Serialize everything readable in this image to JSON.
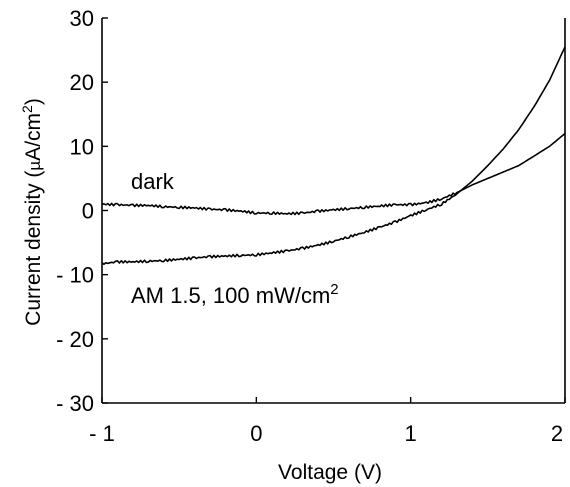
{
  "chart_data": {
    "type": "line",
    "xlabel": "Voltage (V)",
    "ylabel": {
      "prefix": "Current density (",
      "mu": "µ",
      "unit": "A/cm",
      "sup": "2",
      "suffix": ")"
    },
    "xlim": [
      -1,
      2
    ],
    "ylim": [
      -30,
      30
    ],
    "xticks": [
      -1,
      0,
      1,
      2
    ],
    "xtick_labels": [
      "- 1",
      "0",
      "1",
      "2"
    ],
    "yticks": [
      30,
      20,
      10,
      0,
      -10,
      -20,
      -30
    ],
    "ytick_labels": [
      "30",
      "20",
      "10",
      "0",
      "- 10",
      "- 20",
      "- 30"
    ],
    "grid": false,
    "annotations": {
      "dark": "dark",
      "illum_main": "AM 1.5, 100 mW/cm",
      "illum_sup": "2"
    },
    "series": [
      {
        "x": [
          -1.0,
          -0.9,
          -0.8,
          -0.7,
          -0.6,
          -0.5,
          -0.4,
          -0.3,
          -0.2,
          -0.1,
          0.0,
          0.1,
          0.2,
          0.3,
          0.4,
          0.5,
          0.6,
          0.7,
          0.8,
          0.9,
          1.0,
          1.1,
          1.2,
          1.3,
          1.4,
          1.5,
          1.6,
          1.7,
          1.8,
          1.9,
          2.0
        ],
        "y": [
          1.0,
          0.9,
          0.8,
          0.8,
          0.6,
          0.5,
          0.4,
          0.2,
          0.1,
          -0.1,
          -0.4,
          -0.4,
          -0.5,
          -0.4,
          -0.1,
          0.1,
          0.3,
          0.5,
          0.7,
          0.9,
          0.9,
          1.2,
          1.8,
          2.8,
          4.0,
          5.0,
          6.0,
          7.0,
          8.5,
          10.0,
          12.0
        ]
      },
      {
        "x": [
          -1.0,
          -0.9,
          -0.8,
          -0.7,
          -0.6,
          -0.5,
          -0.4,
          -0.3,
          -0.2,
          -0.1,
          0.0,
          0.1,
          0.2,
          0.3,
          0.4,
          0.5,
          0.6,
          0.7,
          0.8,
          0.9,
          1.0,
          1.1,
          1.2,
          1.3,
          1.4,
          1.5,
          1.6,
          1.7,
          1.8,
          1.9,
          2.0
        ],
        "y": [
          -8.3,
          -8.0,
          -8.0,
          -7.9,
          -7.8,
          -7.6,
          -7.4,
          -7.2,
          -7.1,
          -7.0,
          -6.9,
          -6.6,
          -6.3,
          -5.9,
          -5.4,
          -4.8,
          -4.1,
          -3.4,
          -2.6,
          -1.8,
          -0.8,
          0.1,
          1.0,
          2.6,
          4.6,
          7.0,
          9.6,
          12.6,
          16.2,
          20.3,
          25.5
        ]
      }
    ]
  }
}
